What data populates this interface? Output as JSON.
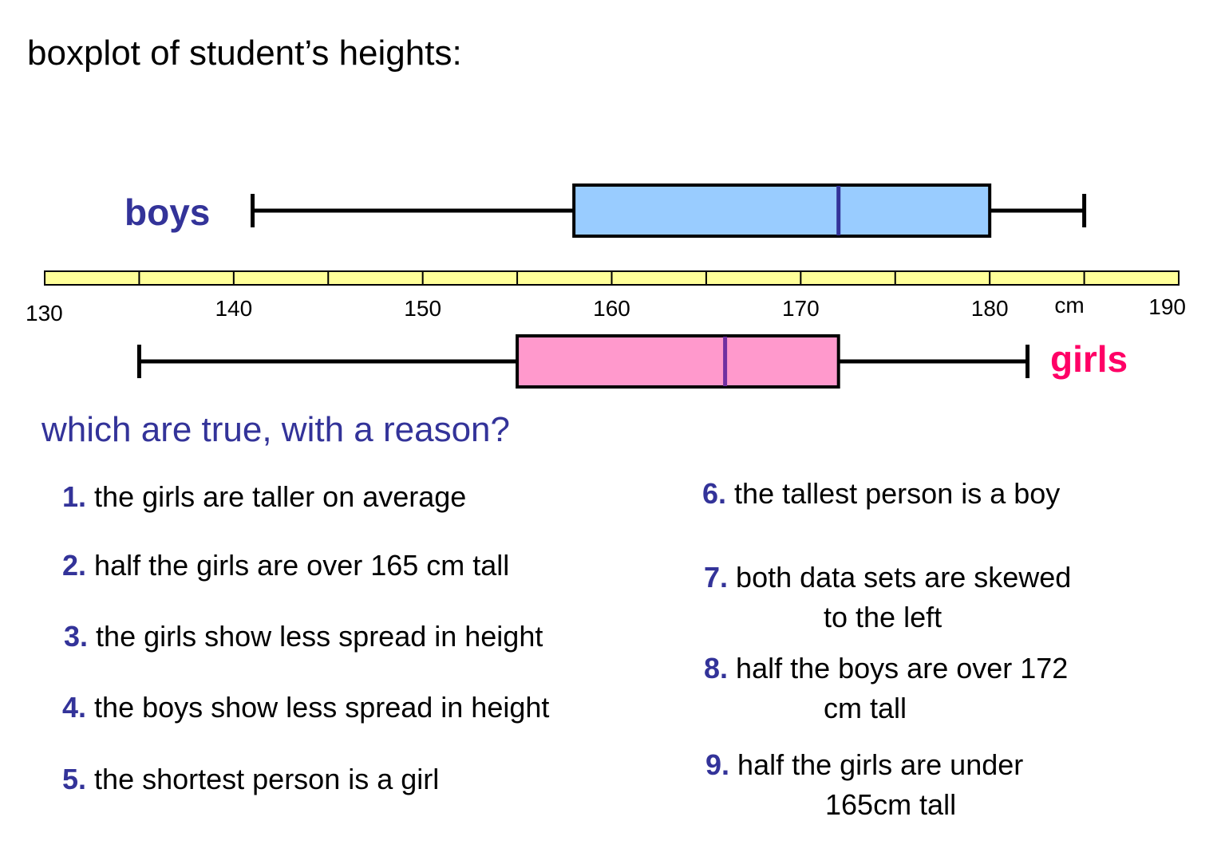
{
  "title": "boxplot of student’s heights:",
  "question": "which are true, with a reason?",
  "colors": {
    "accent": "#333399",
    "boys_box": "#99CCFF",
    "boys_median": "#333399",
    "girls_box": "#FF99CC",
    "girls_median": "#7030A0",
    "girls_label": "#FF0066",
    "ruler": "#FFFF99"
  },
  "chart_data": {
    "type": "boxplot",
    "title": "boxplot of student’s heights:",
    "xlabel": "cm",
    "xlim": [
      130,
      190
    ],
    "ticks": [
      130,
      140,
      150,
      160,
      170,
      180,
      190
    ],
    "minor_step": 5,
    "series": [
      {
        "name": "boys",
        "min": 141,
        "q1": 158,
        "median": 172,
        "q3": 180,
        "max": 185
      },
      {
        "name": "girls",
        "min": 135,
        "q1": 155,
        "median": 166,
        "q3": 172,
        "max": 182
      }
    ]
  },
  "statements": [
    {
      "num": "1.",
      "text": "the girls are taller on average"
    },
    {
      "num": "2.",
      "text": "half the girls are over 165 cm tall"
    },
    {
      "num": "3.",
      "text": "the girls show less spread in height"
    },
    {
      "num": "4.",
      "text": "the boys show less spread in height"
    },
    {
      "num": "5.",
      "text": "the shortest person is a girl"
    },
    {
      "num": "6.",
      "text": "the tallest person is a boy"
    },
    {
      "num": "7.",
      "text": "both data sets are skewed",
      "text2": "to the left"
    },
    {
      "num": "8.",
      "text": "half the boys are over 172",
      "text2": "cm tall"
    },
    {
      "num": "9.",
      "text": "half the girls are under",
      "text2": "165cm tall"
    }
  ]
}
